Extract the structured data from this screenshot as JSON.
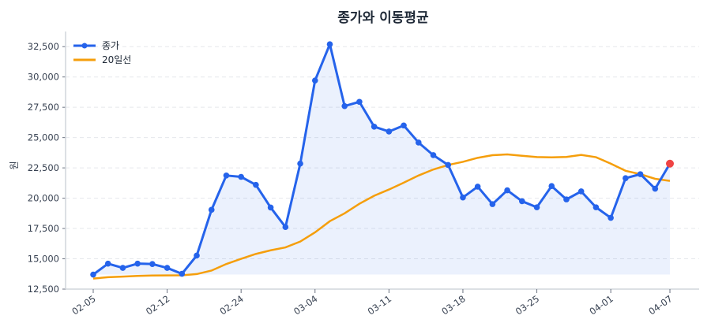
{
  "chart_data": {
    "type": "line",
    "title": "종가와 이동평균",
    "xlabel": "",
    "ylabel": "원",
    "ylim": [
      12500,
      33750
    ],
    "yticks": [
      12500,
      15000,
      17500,
      20000,
      22500,
      25000,
      27500,
      30000,
      32500
    ],
    "x_tick_labels": [
      {
        "index": 0,
        "label": "02-05"
      },
      {
        "index": 5,
        "label": "02-12"
      },
      {
        "index": 10,
        "label": "02-24"
      },
      {
        "index": 15,
        "label": "03-04"
      },
      {
        "index": 20,
        "label": "03-11"
      },
      {
        "index": 25,
        "label": "03-18"
      },
      {
        "index": 30,
        "label": "03-25"
      },
      {
        "index": 35,
        "label": "04-01"
      },
      {
        "index": 39,
        "label": "04-07"
      }
    ],
    "grid": "horizontal dashed",
    "legend_position": "top-left",
    "series": [
      {
        "name": "종가",
        "color": "#2563eb",
        "markers": true,
        "area_fill": true,
        "last_point_color": "#ef4444",
        "values": [
          13700,
          14600,
          14250,
          14600,
          14570,
          14250,
          13760,
          15270,
          19040,
          21870,
          21760,
          21100,
          19230,
          17620,
          22850,
          29710,
          32700,
          27600,
          27950,
          25900,
          25500,
          26000,
          24590,
          23550,
          22740,
          20060,
          20950,
          19510,
          20650,
          19750,
          19250,
          21000,
          19900,
          20560,
          19250,
          18380,
          21650,
          21980,
          20780,
          22850
        ]
      },
      {
        "name": "20일선",
        "color": "#f59e0b",
        "markers": false,
        "values": [
          13370,
          13480,
          13530,
          13590,
          13620,
          13630,
          13640,
          13740,
          14030,
          14570,
          15000,
          15400,
          15700,
          15940,
          16420,
          17180,
          18100,
          18750,
          19540,
          20200,
          20715,
          21280,
          21870,
          22370,
          22740,
          23000,
          23330,
          23550,
          23610,
          23500,
          23390,
          23370,
          23400,
          23570,
          23380,
          22850,
          22260,
          21980,
          21600,
          21430
        ]
      }
    ]
  }
}
